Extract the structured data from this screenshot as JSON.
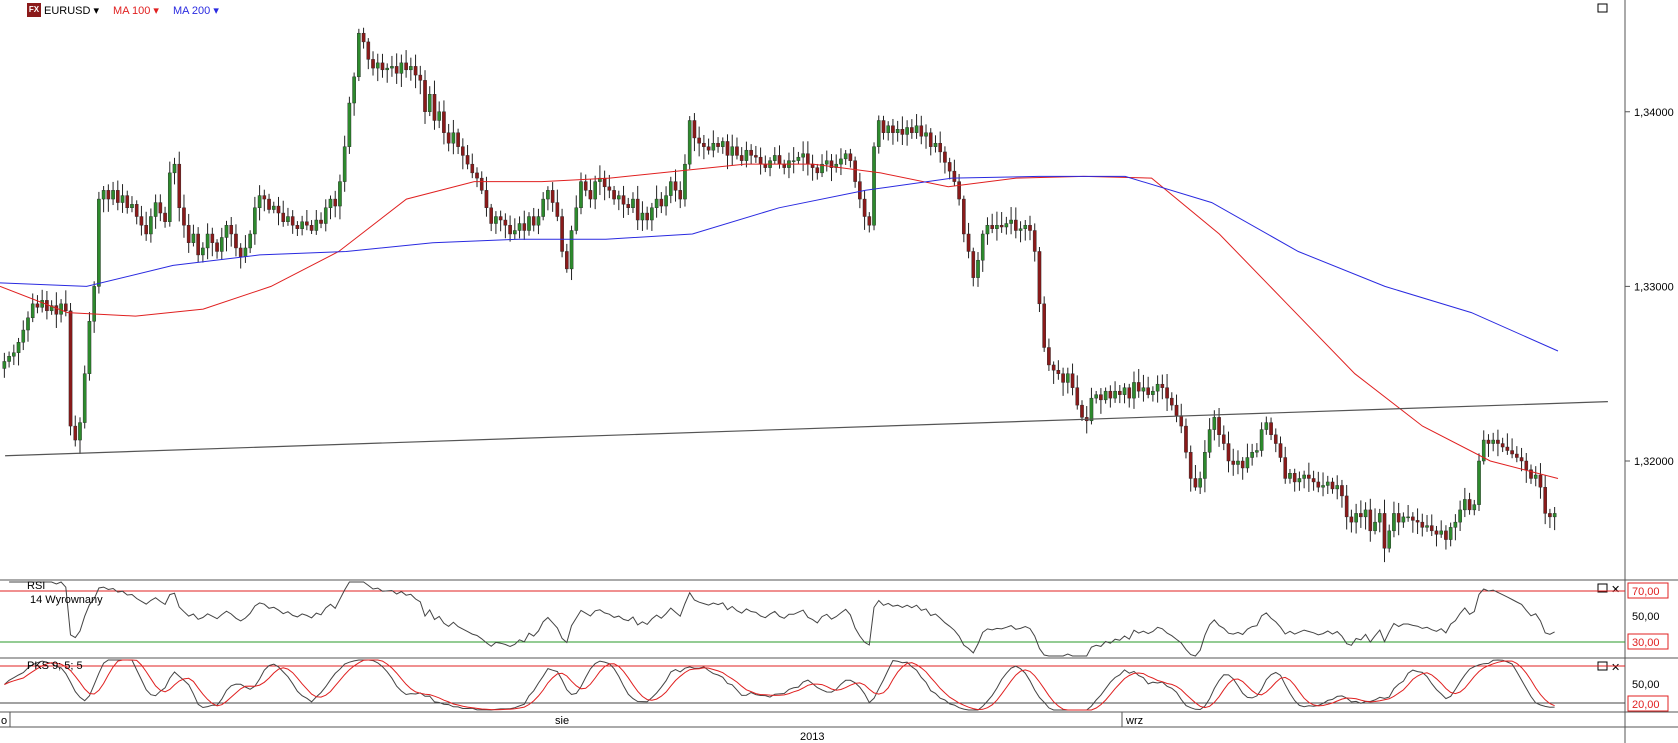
{
  "instrument": {
    "symbol": "EURUSD",
    "ma100_label": "MA 100",
    "ma200_label": "MA 200",
    "ma100_color": "#e02020",
    "ma200_color": "#2a2ae0"
  },
  "panels": {
    "rsi": {
      "title": "RSI",
      "subtitle": "14 Wyrownany",
      "upper": "70,00",
      "mid": "50,00",
      "lower": "30,00"
    },
    "stoch": {
      "title": "PKS 9; 5; 5",
      "mid": "50,00",
      "lower": "20,00"
    }
  },
  "axis": {
    "month1": "sie",
    "month2": "wrz",
    "year": "2013",
    "left_edge_tick": "o"
  },
  "chart_data": {
    "type": "candlestick",
    "title": "",
    "xlabel": "",
    "ylabel": "",
    "y_ticks": [
      "1,32000",
      "1,33000",
      "1,34000"
    ],
    "ylim": [
      1.3133,
      1.3464
    ],
    "x_range_bars": [
      0,
      341
    ],
    "closes": [
      1.3257,
      1.326,
      1.3262,
      1.3268,
      1.3275,
      1.3282,
      1.329,
      1.3288,
      1.3292,
      1.3286,
      1.3289,
      1.3284,
      1.329,
      1.3286,
      1.322,
      1.3212,
      1.3222,
      1.325,
      1.328,
      1.33,
      1.335,
      1.3355,
      1.335,
      1.3355,
      1.3348,
      1.3352,
      1.3345,
      1.3347,
      1.334,
      1.3335,
      1.333,
      1.334,
      1.3348,
      1.3342,
      1.3337,
      1.3365,
      1.337,
      1.3345,
      1.3335,
      1.3325,
      1.333,
      1.3318,
      1.3322,
      1.333,
      1.3325,
      1.332,
      1.3328,
      1.3335,
      1.333,
      1.3322,
      1.3317,
      1.3322,
      1.333,
      1.3345,
      1.3352,
      1.335,
      1.3344,
      1.3346,
      1.3342,
      1.3337,
      1.334,
      1.3335,
      1.3333,
      1.3337,
      1.3335,
      1.3332,
      1.3338,
      1.3336,
      1.3345,
      1.335,
      1.3346,
      1.336,
      1.338,
      1.3405,
      1.342,
      1.3445,
      1.344,
      1.343,
      1.3425,
      1.3428,
      1.3424,
      1.3425,
      1.3426,
      1.3422,
      1.3428,
      1.3424,
      1.3426,
      1.3421,
      1.3418,
      1.34,
      1.341,
      1.3395,
      1.34,
      1.3388,
      1.3382,
      1.3388,
      1.338,
      1.3375,
      1.337,
      1.3365,
      1.3362,
      1.3355,
      1.3345,
      1.3336,
      1.334,
      1.3338,
      1.3335,
      1.333,
      1.3332,
      1.3336,
      1.3332,
      1.334,
      1.3335,
      1.334,
      1.335,
      1.3355,
      1.3348,
      1.334,
      1.332,
      1.331,
      1.3332,
      1.3345,
      1.336,
      1.3355,
      1.335,
      1.336,
      1.3362,
      1.3357,
      1.3355,
      1.335,
      1.3352,
      1.3347,
      1.3345,
      1.335,
      1.3338,
      1.3342,
      1.3338,
      1.3345,
      1.335,
      1.3346,
      1.3352,
      1.336,
      1.3355,
      1.335,
      1.337,
      1.3395,
      1.3385,
      1.3382,
      1.338,
      1.3378,
      1.3382,
      1.338,
      1.3383,
      1.3375,
      1.338,
      1.3375,
      1.3372,
      1.3378,
      1.3375,
      1.3374,
      1.337,
      1.3368,
      1.3372,
      1.3375,
      1.337,
      1.3368,
      1.3372,
      1.3372,
      1.3374,
      1.3376,
      1.337,
      1.3368,
      1.3365,
      1.337,
      1.3372,
      1.3368,
      1.337,
      1.3373,
      1.3376,
      1.3372,
      1.336,
      1.335,
      1.334,
      1.3335,
      1.338,
      1.3395,
      1.3388,
      1.3392,
      1.3388,
      1.339,
      1.3387,
      1.3391,
      1.3388,
      1.3392,
      1.3386,
      1.3388,
      1.338,
      1.3382,
      1.3377,
      1.3371,
      1.3366,
      1.336,
      1.335,
      1.333,
      1.332,
      1.3305,
      1.3315,
      1.333,
      1.3335,
      1.3333,
      1.3335,
      1.3334,
      1.3336,
      1.3338,
      1.3332,
      1.3333,
      1.3335,
      1.3332,
      1.332,
      1.329,
      1.3265,
      1.3255,
      1.3252,
      1.325,
      1.3245,
      1.325,
      1.3242,
      1.3232,
      1.3225,
      1.3223,
      1.3236,
      1.3238,
      1.3235,
      1.324,
      1.3236,
      1.324,
      1.3238,
      1.3242,
      1.3236,
      1.3245,
      1.324,
      1.3242,
      1.3238,
      1.324,
      1.3244,
      1.3242,
      1.3236,
      1.3232,
      1.3226,
      1.322,
      1.3205,
      1.319,
      1.3185,
      1.319,
      1.3205,
      1.3218,
      1.3225,
      1.3215,
      1.321,
      1.32,
      1.3198,
      1.32,
      1.3196,
      1.3202,
      1.3205,
      1.3206,
      1.3218,
      1.3222,
      1.3215,
      1.321,
      1.3202,
      1.319,
      1.3193,
      1.3188,
      1.319,
      1.3192,
      1.319,
      1.3188,
      1.3185,
      1.3186,
      1.3188,
      1.3184,
      1.3186,
      1.318,
      1.3168,
      1.3165,
      1.317,
      1.3168,
      1.3172,
      1.316,
      1.3165,
      1.317,
      1.315,
      1.316,
      1.317,
      1.3165,
      1.3168,
      1.3168,
      1.3166,
      1.3165,
      1.3162,
      1.3163,
      1.316,
      1.3158,
      1.316,
      1.3155,
      1.3162,
      1.3165,
      1.3172,
      1.3178,
      1.3172,
      1.3175,
      1.32,
      1.3212,
      1.321,
      1.3212,
      1.321,
      1.3208,
      1.3206,
      1.3204,
      1.3202,
      1.32,
      1.3195,
      1.319,
      1.3192,
      1.3185,
      1.317,
      1.3168,
      1.317
    ],
    "ma100_y": [
      1.33,
      1.3285,
      1.3283,
      1.3287,
      1.33,
      1.332,
      1.335,
      1.336,
      1.336,
      1.3362,
      1.3366,
      1.337,
      1.337,
      1.3365,
      1.3357,
      1.3362,
      1.3363,
      1.3362,
      1.333,
      1.329,
      1.325,
      1.322,
      1.32,
      1.319
    ],
    "ma200_y": [
      1.3302,
      1.33,
      1.3312,
      1.3318,
      1.332,
      1.3325,
      1.3327,
      1.3327,
      1.333,
      1.3345,
      1.3355,
      1.3362,
      1.3363,
      1.3363,
      1.3348,
      1.332,
      1.33,
      1.3285,
      1.3263
    ],
    "trendline": {
      "from": [
        1,
        1.3203
      ],
      "to": [
        338,
        1.3234
      ]
    },
    "rsi": {
      "upper": 70,
      "lower": 30
    },
    "stoch": {
      "upper": 80,
      "lower": 20
    }
  }
}
